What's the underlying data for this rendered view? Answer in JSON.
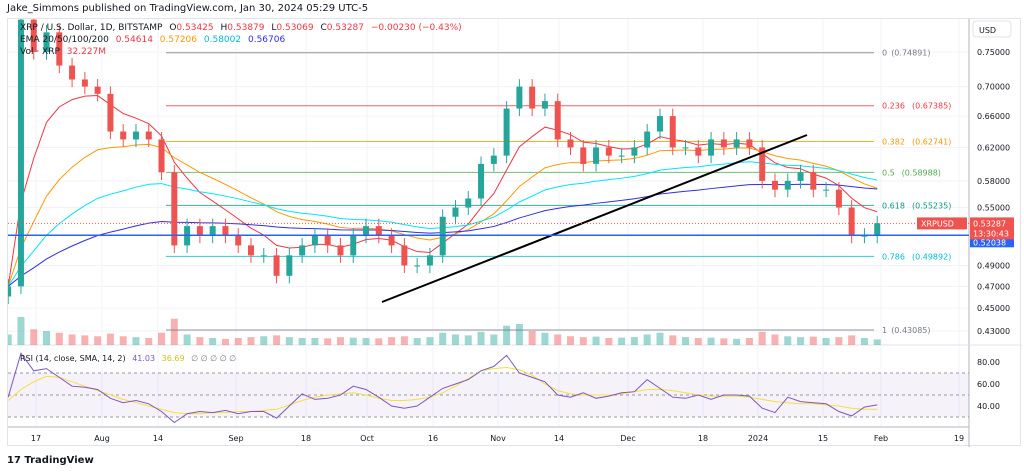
{
  "header": {
    "published": "Jake_Simmons published on TradingView.com, Jan 30, 2024 05:29 UTC-5"
  },
  "legend": {
    "symbol": "XRP / U.S. Dollar, 1D, BITSTAMP",
    "o_label": "O",
    "o": "0.53425",
    "h_label": "H",
    "h": "0.53879",
    "l_label": "L",
    "l": "0.53069",
    "c_label": "C",
    "c": "0.53287",
    "change": "−0.00230 (−0.43%)",
    "ema_label": "EMA 20/50/100/200",
    "ema20": "0.54614",
    "ema50": "0.57206",
    "ema100": "0.58002",
    "ema200": "0.56706",
    "vol_label": "Vol · XRP",
    "vol": "32.227M",
    "rsi_label": "RSI (14, close, SMA, 14, 2)",
    "rsi": "41.03",
    "rsi_ma": "36.69",
    "rsi_na": "∅ ∅   ∅ ∅ ∅"
  },
  "colors": {
    "up": "#26a69a",
    "down": "#ef5350",
    "ema20": "#f23645",
    "ema50": "#ff9800",
    "ema100": "#00e5ff",
    "ema200": "#2e2ee6",
    "rsi": "#7e57c2",
    "rsi_ma": "#f5e03b",
    "hline": "#2962ff"
  },
  "price_axis": {
    "currency": "USD",
    "ticks": [
      "0.75000",
      "0.70000",
      "0.66000",
      "0.62000",
      "0.58000",
      "0.55000",
      "0.49000",
      "0.47000",
      "0.45000",
      "0.43000"
    ],
    "scale": "log"
  },
  "price_tag": {
    "symbol": "XRPUSD",
    "price": "0.53287",
    "countdown": "13:30:43"
  },
  "hline_tag": "0.52038",
  "fib": [
    {
      "level": "0",
      "price": "0.74891",
      "color": "#787b86"
    },
    {
      "level": "0.236",
      "price": "0.67385",
      "color": "#f23645"
    },
    {
      "level": "0.382",
      "price": "0.62741",
      "color": "#ff9800"
    },
    {
      "level": "0.5",
      "price": "0.58988",
      "color": "#4caf50"
    },
    {
      "level": "0.618",
      "price": "0.55235",
      "color": "#089981"
    },
    {
      "level": "0.786",
      "price": "0.49892",
      "color": "#00bcd4"
    },
    {
      "level": "1",
      "price": "0.43085",
      "color": "#787b86"
    }
  ],
  "rsi_axis": [
    "80.00",
    "60.00",
    "40.00"
  ],
  "time_axis": [
    "17",
    "Aug",
    "14",
    "Sep",
    "18",
    "Oct",
    "16",
    "Nov",
    "14",
    "Dec",
    "18",
    "2024",
    "15",
    "Feb",
    "19"
  ],
  "branding": "TradingView",
  "chart_data": {
    "type": "candlestick",
    "interval_days": 3,
    "start": "2023-07-10",
    "close": [
      0.47,
      0.8,
      0.75,
      0.78,
      0.73,
      0.71,
      0.7,
      0.69,
      0.64,
      0.63,
      0.64,
      0.63,
      0.59,
      0.51,
      0.53,
      0.52,
      0.53,
      0.52,
      0.51,
      0.5,
      0.5,
      0.48,
      0.5,
      0.51,
      0.52,
      0.51,
      0.5,
      0.52,
      0.53,
      0.52,
      0.51,
      0.49,
      0.49,
      0.5,
      0.54,
      0.55,
      0.56,
      0.6,
      0.61,
      0.67,
      0.7,
      0.67,
      0.68,
      0.63,
      0.62,
      0.6,
      0.62,
      0.61,
      0.61,
      0.62,
      0.64,
      0.66,
      0.62,
      0.62,
      0.61,
      0.63,
      0.62,
      0.63,
      0.62,
      0.58,
      0.57,
      0.58,
      0.59,
      0.57,
      0.57,
      0.55,
      0.52,
      0.52,
      0.533
    ],
    "volume": [
      60,
      160,
      90,
      80,
      70,
      60,
      55,
      50,
      65,
      50,
      45,
      40,
      70,
      150,
      60,
      45,
      40,
      35,
      40,
      45,
      50,
      55,
      45,
      40,
      40,
      38,
      45,
      42,
      40,
      38,
      45,
      50,
      40,
      45,
      70,
      60,
      55,
      75,
      60,
      110,
      120,
      80,
      70,
      60,
      50,
      45,
      48,
      40,
      42,
      45,
      60,
      70,
      55,
      45,
      40,
      42,
      38,
      35,
      40,
      75,
      60,
      50,
      45,
      48,
      40,
      45,
      55,
      40,
      32
    ],
    "rsi": [
      48,
      88,
      72,
      74,
      66,
      58,
      57,
      55,
      47,
      43,
      45,
      42,
      35,
      25,
      33,
      35,
      34,
      36,
      33,
      35,
      35,
      29,
      40,
      51,
      46,
      47,
      50,
      58,
      55,
      48,
      40,
      38,
      40,
      48,
      56,
      60,
      64,
      72,
      76,
      86,
      70,
      66,
      62,
      50,
      48,
      52,
      47,
      49,
      52,
      53,
      64,
      56,
      48,
      47,
      50,
      46,
      50,
      50,
      49,
      38,
      34,
      48,
      44,
      43,
      42,
      35,
      31,
      39,
      41
    ],
    "rsi_ma": [
      45,
      55,
      62,
      67,
      66,
      62,
      58,
      54,
      50,
      46,
      43,
      40,
      37,
      34,
      33,
      33,
      34,
      34,
      35,
      35,
      36,
      37,
      41,
      45,
      48,
      50,
      51,
      52,
      50,
      47,
      45,
      45,
      46,
      48,
      52,
      58,
      65,
      72,
      74,
      75,
      73,
      68,
      60,
      54,
      51,
      50,
      50,
      50,
      51,
      53,
      55,
      55,
      54,
      52,
      50,
      49,
      49,
      49,
      48,
      46,
      44,
      43,
      42,
      42,
      41,
      40,
      38,
      37,
      37
    ]
  }
}
